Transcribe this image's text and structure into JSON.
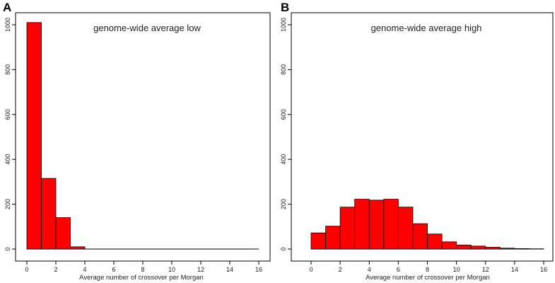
{
  "chart_data": [
    {
      "type": "bar",
      "panel_label": "A",
      "title": "genome-wide average low",
      "xlabel": "Average number of crossover per Morgan",
      "ylabel": "",
      "bin_edges": [
        0,
        1,
        2,
        3,
        4
      ],
      "values": [
        1010,
        315,
        140,
        10
      ],
      "xlim": [
        0,
        16
      ],
      "ylim": [
        0,
        1000
      ],
      "x_ticks": [
        0,
        2,
        4,
        6,
        8,
        10,
        12,
        14,
        16
      ],
      "y_ticks": [
        0,
        200,
        400,
        600,
        800,
        1000
      ],
      "bar_color": "#ff0000",
      "grid": false
    },
    {
      "type": "bar",
      "panel_label": "B",
      "title": "genome-wide average high",
      "xlabel": "Average number of crossover per Morgan",
      "ylabel": "",
      "bin_edges": [
        0,
        1,
        2,
        3,
        4,
        5,
        6,
        7,
        8,
        9,
        10,
        11,
        12,
        13,
        14,
        15,
        16
      ],
      "values": [
        72,
        102,
        187,
        222,
        218,
        222,
        187,
        113,
        67,
        32,
        18,
        13,
        8,
        4,
        2,
        1
      ],
      "xlim": [
        0,
        16
      ],
      "ylim": [
        0,
        1000
      ],
      "x_ticks": [
        0,
        2,
        4,
        6,
        8,
        10,
        12,
        14,
        16
      ],
      "y_ticks": [
        0,
        200,
        400,
        600,
        800,
        1000
      ],
      "bar_color": "#ff0000",
      "grid": false
    }
  ]
}
